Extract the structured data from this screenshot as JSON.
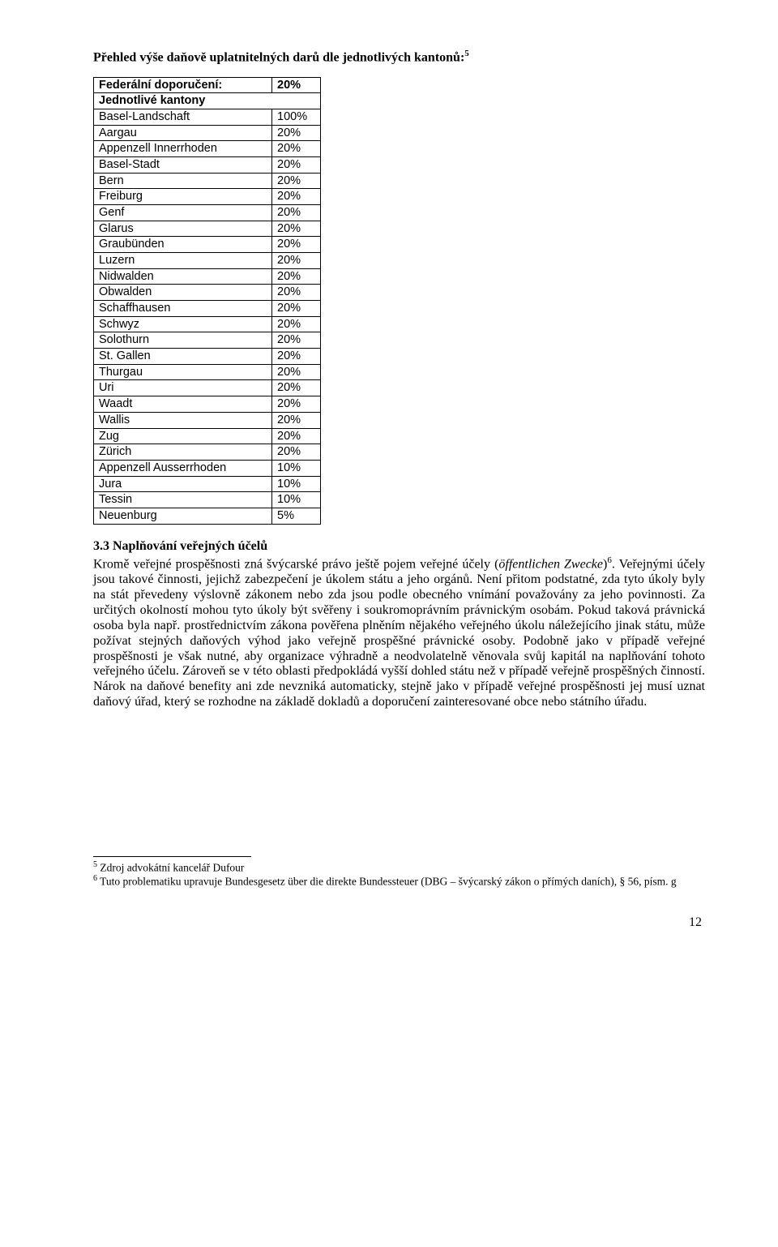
{
  "title": "Přehled výše daňově uplatnitelných darů dle jednotlivých kantonů:",
  "title_footnote_ref": "5",
  "table": {
    "header": {
      "label": "Federální doporučení:",
      "value": "20%"
    },
    "subheader": "Jednotlivé kantony",
    "rows": [
      {
        "name": "Basel-Landschaft",
        "value": "100%"
      },
      {
        "name": "Aargau",
        "value": "20%"
      },
      {
        "name": "Appenzell Innerrhoden",
        "value": "20%"
      },
      {
        "name": "Basel-Stadt",
        "value": "20%"
      },
      {
        "name": "Bern",
        "value": "20%"
      },
      {
        "name": "Freiburg",
        "value": "20%"
      },
      {
        "name": "Genf",
        "value": "20%"
      },
      {
        "name": "Glarus",
        "value": "20%"
      },
      {
        "name": "Graubünden",
        "value": "20%"
      },
      {
        "name": "Luzern",
        "value": "20%"
      },
      {
        "name": "Nidwalden",
        "value": "20%"
      },
      {
        "name": "Obwalden",
        "value": "20%"
      },
      {
        "name": "Schaffhausen",
        "value": "20%"
      },
      {
        "name": "Schwyz",
        "value": "20%"
      },
      {
        "name": "Solothurn",
        "value": "20%"
      },
      {
        "name": "St. Gallen",
        "value": "20%"
      },
      {
        "name": "Thurgau",
        "value": "20%"
      },
      {
        "name": "Uri",
        "value": "20%"
      },
      {
        "name": "Waadt",
        "value": "20%"
      },
      {
        "name": "Wallis",
        "value": "20%"
      },
      {
        "name": "Zug",
        "value": "20%"
      },
      {
        "name": "Zürich",
        "value": "20%"
      },
      {
        "name": "Appenzell Ausserrhoden",
        "value": "10%"
      },
      {
        "name": "Jura",
        "value": "10%"
      },
      {
        "name": "Tessin",
        "value": "10%"
      },
      {
        "name": "Neuenburg",
        "value": "5%"
      }
    ]
  },
  "section": {
    "heading": "3.3 Naplňování veřejných účelů",
    "text_before_italic": "Kromě veřejné prospěšnosti zná švýcarské právo ještě pojem veřejné účely (",
    "italic": "öffentlichen Zwecke",
    "text_after_italic": ")",
    "footnote_ref": "6",
    "text_rest": ". Veřejnými účely jsou takové činnosti, jejichž zabezpečení je úkolem státu a jeho orgánů. Není přitom podstatné, zda tyto úkoly byly na stát převedeny výslovně zákonem nebo zda jsou podle obecného vnímání považovány za jeho povinnosti. Za určitých okolností mohou tyto úkoly být svěřeny i soukromoprávním právnickým osobám. Pokud taková právnická osoba byla např. prostřednictvím zákona pověřena plněním nějakého veřejného úkolu náležejícího jinak státu, může požívat stejných daňových výhod jako veřejně prospěšné právnické osoby. Podobně jako v případě veřejné prospěšnosti je však nutné, aby organizace výhradně a neodvolatelně věnovala svůj kapitál na naplňování tohoto veřejného účelu. Zároveň se v této oblasti předpokládá vyšší dohled státu než v případě veřejně prospěšných činností. Nárok na daňové benefity ani zde nevzniká automaticky, stejně jako v případě veřejné prospěšnosti jej musí uznat daňový úřad, který se rozhodne na základě dokladů a doporučení zainteresované obce nebo státního úřadu."
  },
  "footnotes": [
    {
      "ref": "5",
      "text": " Zdroj advokátní kancelář Dufour"
    },
    {
      "ref": "6",
      "text": " Tuto problematiku upravuje Bundesgesetz über die direkte Bundessteuer (DBG – švýcarský zákon o přímých daních), § 56, písm. g"
    }
  ],
  "page_number": "12"
}
